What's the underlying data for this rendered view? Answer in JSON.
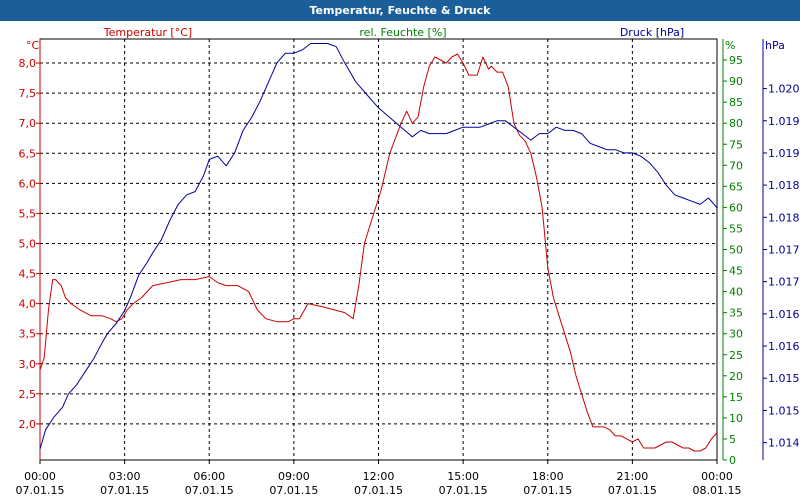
{
  "window": {
    "title": "Temperatur, Feuchte & Druck"
  },
  "colors": {
    "temperature": "#cc0000",
    "humidity": "#008000",
    "pressure": "#00009b",
    "titlebar": "#1b5f9a",
    "axis": "#000000"
  },
  "chart_data": {
    "type": "line",
    "title": "Temperatur, Feuchte & Druck",
    "x_range_hours": [
      0,
      24
    ],
    "x_ticks": [
      {
        "hour": 0,
        "time": "00:00",
        "date": "07.01.15"
      },
      {
        "hour": 3,
        "time": "03:00",
        "date": "07.01.15"
      },
      {
        "hour": 6,
        "time": "06:00",
        "date": "07.01.15"
      },
      {
        "hour": 9,
        "time": "09:00",
        "date": "07.01.15"
      },
      {
        "hour": 12,
        "time": "12:00",
        "date": "07.01.15"
      },
      {
        "hour": 15,
        "time": "15:00",
        "date": "07.01.15"
      },
      {
        "hour": 18,
        "time": "18:00",
        "date": "07.01.15"
      },
      {
        "hour": 21,
        "time": "21:00",
        "date": "07.01.15"
      },
      {
        "hour": 24,
        "time": "00:00",
        "date": "08.01.15"
      }
    ],
    "axes": {
      "left": {
        "unit": "°C",
        "range": [
          1.4,
          8.4
        ],
        "ticks": [
          "2,0",
          "2,5",
          "3,0",
          "3,5",
          "4,0",
          "4,5",
          "5,0",
          "5,5",
          "6,0",
          "6,5",
          "7,0",
          "7,5",
          "8,0"
        ],
        "tick_values": [
          2.0,
          2.5,
          3.0,
          3.5,
          4.0,
          4.5,
          5.0,
          5.5,
          6.0,
          6.5,
          7.0,
          7.5,
          8.0
        ]
      },
      "mid": {
        "unit": "%",
        "range": [
          0,
          100
        ],
        "ticks": [
          "0",
          "5",
          "10",
          "15",
          "20",
          "25",
          "30",
          "35",
          "40",
          "45",
          "50",
          "55",
          "60",
          "65",
          "70",
          "75",
          "80",
          "85",
          "90",
          "95"
        ],
        "tick_values": [
          0,
          5,
          10,
          15,
          20,
          25,
          30,
          35,
          40,
          45,
          50,
          55,
          60,
          65,
          70,
          75,
          80,
          85,
          90,
          95
        ]
      },
      "right": {
        "unit": "hPa",
        "range": [
          1013.73,
          1020.27
        ],
        "ticks": [
          "1.014",
          "1.015",
          "1.015",
          "1.016",
          "1.016",
          "1.017",
          "1.017",
          "1.018",
          "1.018",
          "1.019",
          "1.019",
          "1.020"
        ],
        "tick_values": [
          1014.0,
          1014.5,
          1015.0,
          1015.5,
          1016.0,
          1016.5,
          1017.0,
          1017.5,
          1018.0,
          1018.5,
          1019.0,
          1019.5
        ]
      }
    },
    "legend": [
      {
        "label": "Temperatur [°C]",
        "color": "#cc0000",
        "axis": "left"
      },
      {
        "label": "rel. Feuchte [%]",
        "color": "#008000",
        "axis": "mid"
      },
      {
        "label": "Druck [hPa]",
        "color": "#00009b",
        "axis": "right"
      }
    ],
    "series": [
      {
        "name": "Temperatur [°C]",
        "axis": "left",
        "color": "#cc0000",
        "x": [
          0.0,
          0.15,
          0.3,
          0.45,
          0.55,
          0.75,
          0.9,
          1.1,
          1.4,
          1.8,
          2.2,
          2.5,
          2.7,
          2.9,
          3.1,
          3.3,
          3.6,
          4.0,
          4.5,
          5.0,
          5.5,
          6.0,
          6.3,
          6.6,
          7.0,
          7.4,
          7.7,
          8.0,
          8.4,
          8.8,
          9.0,
          9.2,
          9.5,
          10.0,
          10.4,
          10.8,
          11.1,
          11.3,
          11.5,
          11.7,
          11.9,
          12.1,
          12.4,
          12.8,
          13.0,
          13.2,
          13.4,
          13.6,
          13.8,
          14.0,
          14.2,
          14.4,
          14.6,
          14.8,
          15.0,
          15.2,
          15.5,
          15.7,
          15.9,
          16.0,
          16.2,
          16.4,
          16.6,
          16.8,
          17.0,
          17.2,
          17.4,
          17.6,
          17.8,
          18.0,
          18.2,
          18.4,
          18.6,
          18.8,
          19.0,
          19.2,
          19.4,
          19.6,
          19.8,
          20.0,
          20.2,
          20.4,
          20.6,
          20.8,
          21.0,
          21.2,
          21.4,
          21.6,
          21.8,
          22.0,
          22.2,
          22.4,
          22.6,
          22.8,
          23.0,
          23.2,
          23.4,
          23.6,
          23.8,
          24.0
        ],
        "y": [
          2.9,
          3.1,
          3.9,
          4.4,
          4.4,
          4.3,
          4.1,
          4.0,
          3.9,
          3.8,
          3.8,
          3.75,
          3.7,
          3.75,
          3.9,
          4.0,
          4.1,
          4.3,
          4.35,
          4.4,
          4.4,
          4.45,
          4.35,
          4.3,
          4.3,
          4.2,
          3.9,
          3.75,
          3.7,
          3.7,
          3.75,
          3.75,
          4.0,
          3.95,
          3.9,
          3.85,
          3.75,
          4.3,
          5.0,
          5.3,
          5.6,
          5.9,
          6.5,
          7.0,
          7.2,
          7.0,
          7.1,
          7.6,
          7.95,
          8.1,
          8.05,
          8.0,
          8.1,
          8.15,
          8.0,
          7.8,
          7.8,
          8.1,
          7.9,
          7.95,
          7.85,
          7.85,
          7.6,
          7.0,
          6.8,
          6.7,
          6.5,
          6.1,
          5.6,
          4.6,
          4.1,
          3.8,
          3.5,
          3.2,
          2.8,
          2.5,
          2.2,
          1.95,
          1.95,
          1.95,
          1.9,
          1.8,
          1.8,
          1.75,
          1.7,
          1.75,
          1.6,
          1.6,
          1.6,
          1.65,
          1.7,
          1.7,
          1.65,
          1.6,
          1.6,
          1.55,
          1.55,
          1.6,
          1.75,
          1.85
        ]
      },
      {
        "name": "Druck [hPa]",
        "axis": "right",
        "color": "#00009b",
        "x": [
          0.0,
          0.2,
          0.5,
          0.8,
          1.0,
          1.3,
          1.6,
          1.9,
          2.2,
          2.4,
          2.7,
          3.0,
          3.2,
          3.5,
          3.8,
          4.0,
          4.3,
          4.6,
          4.9,
          5.2,
          5.5,
          5.8,
          6.0,
          6.3,
          6.6,
          6.9,
          7.2,
          7.5,
          7.8,
          8.1,
          8.4,
          8.7,
          9.0,
          9.3,
          9.6,
          9.9,
          10.2,
          10.5,
          10.8,
          11.2,
          11.6,
          12.0,
          12.4,
          12.8,
          13.2,
          13.5,
          13.8,
          14.1,
          14.4,
          14.7,
          15.0,
          15.3,
          15.6,
          15.9,
          16.2,
          16.5,
          16.8,
          17.1,
          17.4,
          17.7,
          18.0,
          18.3,
          18.6,
          18.9,
          19.2,
          19.5,
          19.8,
          20.1,
          20.4,
          20.7,
          21.0,
          21.3,
          21.6,
          21.9,
          22.2,
          22.5,
          22.8,
          23.1,
          23.4,
          23.7,
          24.0
        ],
        "y": [
          1013.9,
          1014.2,
          1014.4,
          1014.55,
          1014.75,
          1014.9,
          1015.1,
          1015.3,
          1015.55,
          1015.7,
          1015.85,
          1016.05,
          1016.25,
          1016.6,
          1016.8,
          1016.95,
          1017.15,
          1017.45,
          1017.7,
          1017.85,
          1017.9,
          1018.15,
          1018.4,
          1018.45,
          1018.3,
          1018.5,
          1018.85,
          1019.05,
          1019.3,
          1019.6,
          1019.9,
          1020.05,
          1020.05,
          1020.1,
          1020.2,
          1020.2,
          1020.2,
          1020.15,
          1019.9,
          1019.6,
          1019.4,
          1019.2,
          1019.05,
          1018.9,
          1018.75,
          1018.85,
          1018.8,
          1018.8,
          1018.8,
          1018.85,
          1018.9,
          1018.9,
          1018.9,
          1018.95,
          1019.0,
          1019.0,
          1018.9,
          1018.8,
          1018.7,
          1018.8,
          1018.8,
          1018.9,
          1018.85,
          1018.85,
          1018.8,
          1018.65,
          1018.6,
          1018.55,
          1018.55,
          1018.5,
          1018.5,
          1018.45,
          1018.35,
          1018.2,
          1018.0,
          1017.85,
          1017.8,
          1017.75,
          1017.7,
          1017.8,
          1017.65
        ]
      }
    ]
  }
}
